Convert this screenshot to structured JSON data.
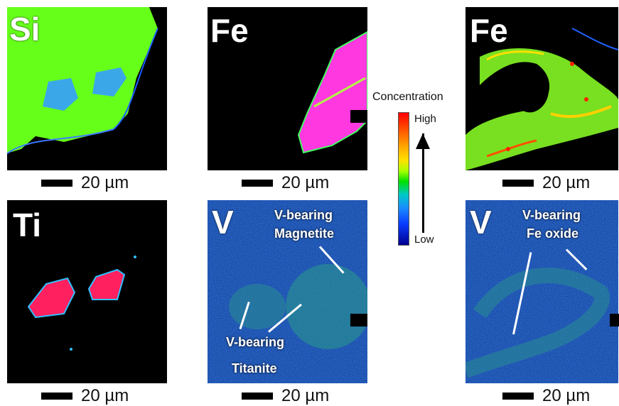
{
  "colorbar": {
    "title": "Concentration",
    "high": "High",
    "low": "Low",
    "colors": [
      "#ff0000",
      "#ffaa00",
      "#a8ff00",
      "#00e000",
      "#1a8cff",
      "#000090"
    ]
  },
  "panels": [
    {
      "element": "Si",
      "scale": "20 µm"
    },
    {
      "element": "Fe",
      "scale": "20 µm"
    },
    {
      "element": "Fe",
      "scale": "20 µm"
    },
    {
      "element": "Ti",
      "scale": "20 µm"
    },
    {
      "element": "V",
      "scale": "20 µm",
      "ann1a": "V-bearing",
      "ann1b": "Magnetite",
      "ann2a": "V-bearing",
      "ann2b": "Titanite"
    },
    {
      "element": "V",
      "scale": "20 µm",
      "ann1a": "V-bearing",
      "ann1b": "Fe oxide"
    }
  ]
}
